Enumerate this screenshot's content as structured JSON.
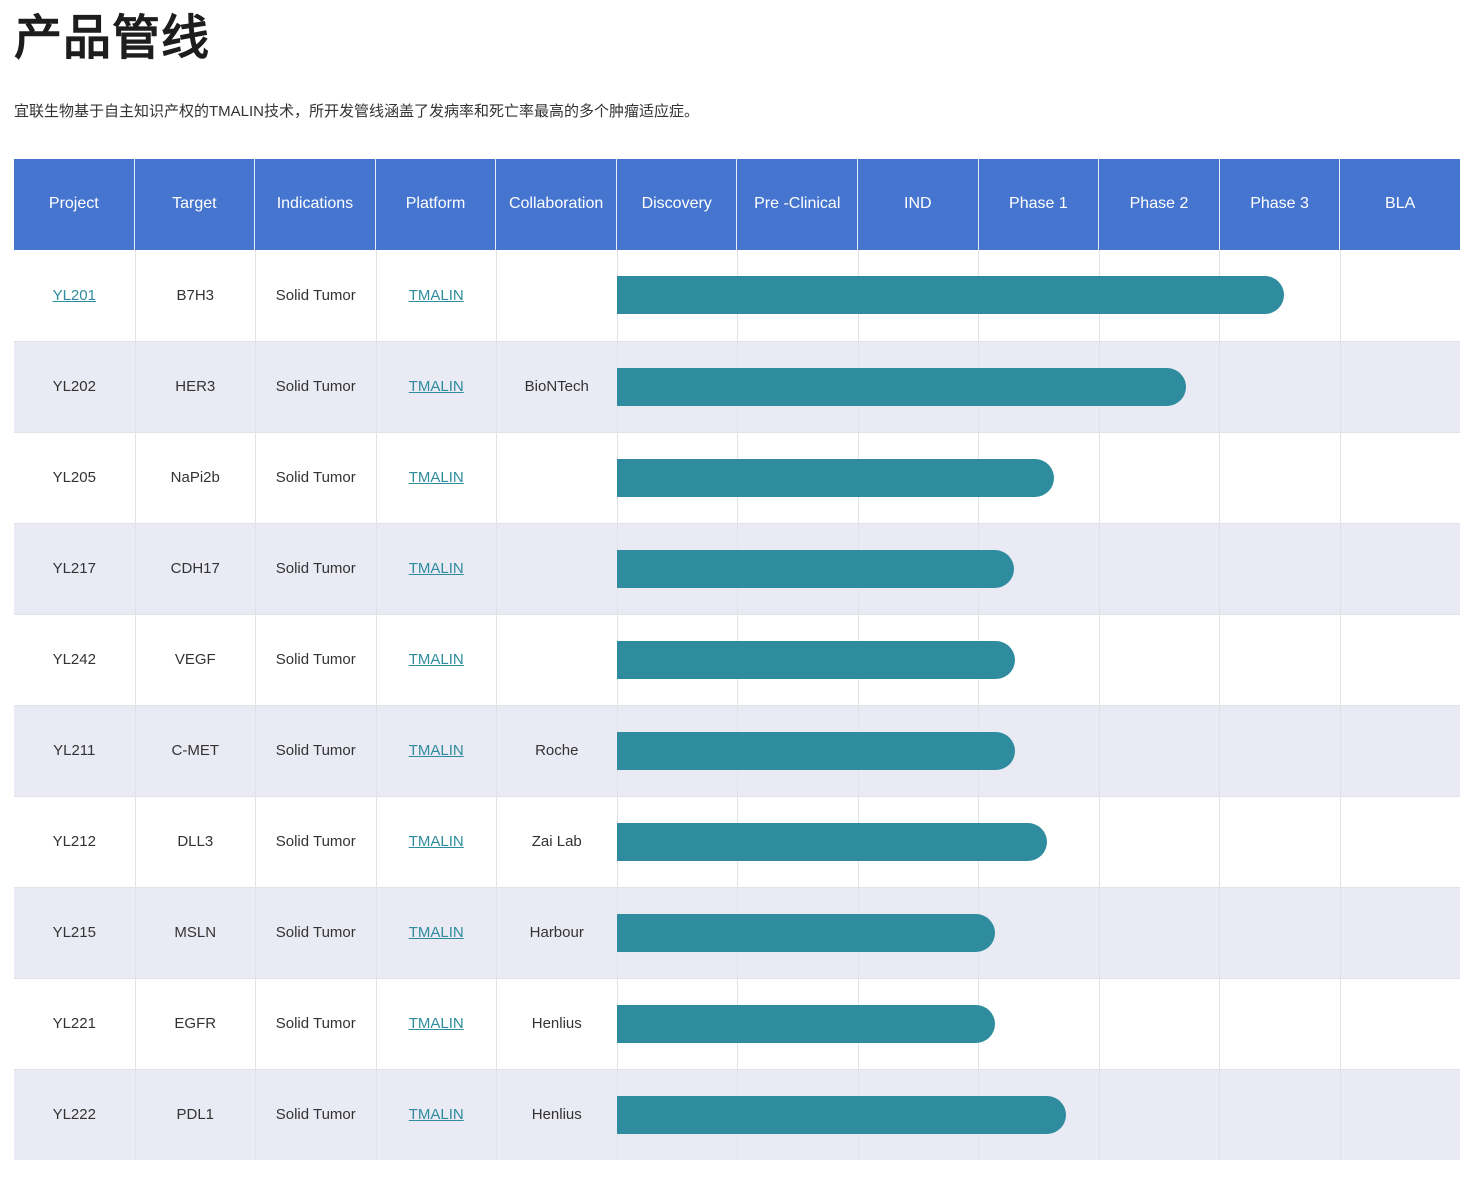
{
  "page": {
    "title": "产品管线",
    "subtitle": "宜联生物基于自主知识产权的TMALIN技术，所开发管线涵盖了发病率和死亡率最高的多个肿瘤适应症。"
  },
  "colors": {
    "header_bg": "#4575CE",
    "bar": "#2E8C9E",
    "row_alt_bg": "#E9EAF4",
    "link": "#2E8C9E"
  },
  "table": {
    "columns": [
      "Project",
      "Target",
      "Indications",
      "Platform",
      "Collaboration",
      "Discovery",
      "Pre -Clinical",
      "IND",
      "Phase 1",
      "Phase 2",
      "Phase 3",
      "BLA"
    ],
    "phase_total": 7,
    "rows": [
      {
        "project": "YL201",
        "project_is_link": true,
        "target": "B7H3",
        "indications": "Solid Tumor",
        "platform": "TMALIN",
        "collaboration": "",
        "phase_progress": 5.54
      },
      {
        "project": "YL202",
        "project_is_link": false,
        "target": "HER3",
        "indications": "Solid Tumor",
        "platform": "TMALIN",
        "collaboration": "BioNTech",
        "phase_progress": 4.73
      },
      {
        "project": "YL205",
        "project_is_link": false,
        "target": "NaPi2b",
        "indications": "Solid Tumor",
        "platform": "TMALIN",
        "collaboration": "",
        "phase_progress": 3.63
      },
      {
        "project": "YL217",
        "project_is_link": false,
        "target": "CDH17",
        "indications": "Solid Tumor",
        "platform": "TMALIN",
        "collaboration": "",
        "phase_progress": 3.3
      },
      {
        "project": "YL242",
        "project_is_link": false,
        "target": "VEGF",
        "indications": "Solid Tumor",
        "platform": "TMALIN",
        "collaboration": "",
        "phase_progress": 3.31
      },
      {
        "project": "YL211",
        "project_is_link": false,
        "target": "C-MET",
        "indications": "Solid Tumor",
        "platform": "TMALIN",
        "collaboration": "Roche",
        "phase_progress": 3.31
      },
      {
        "project": "YL212",
        "project_is_link": false,
        "target": "DLL3",
        "indications": "Solid Tumor",
        "platform": "TMALIN",
        "collaboration": "Zai Lab",
        "phase_progress": 3.57
      },
      {
        "project": "YL215",
        "project_is_link": false,
        "target": "MSLN",
        "indications": "Solid Tumor",
        "platform": "TMALIN",
        "collaboration": "Harbour",
        "phase_progress": 3.14
      },
      {
        "project": "YL221",
        "project_is_link": false,
        "target": "EGFR",
        "indications": "Solid Tumor",
        "platform": "TMALIN",
        "collaboration": "Henlius",
        "phase_progress": 3.14
      },
      {
        "project": "YL222",
        "project_is_link": false,
        "target": "PDL1",
        "indications": "Solid Tumor",
        "platform": "TMALIN",
        "collaboration": "Henlius",
        "phase_progress": 3.73
      }
    ]
  }
}
